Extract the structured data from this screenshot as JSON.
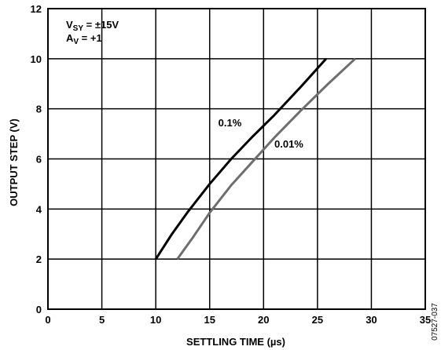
{
  "chart_data": {
    "type": "line",
    "xlabel": "SETTLING TIME (µs)",
    "ylabel": "OUTPUT STEP (V)",
    "xlim": [
      0,
      35
    ],
    "ylim": [
      0,
      12
    ],
    "xticks": [
      0,
      5,
      10,
      15,
      20,
      25,
      30,
      35
    ],
    "yticks": [
      0,
      2,
      4,
      6,
      8,
      10,
      12
    ],
    "grid": true,
    "annotation": {
      "line1": {
        "main": "V",
        "sub": "SY",
        "rest": " = ±15V"
      },
      "line2": {
        "main": "A",
        "sub": "V",
        "rest": " = +1"
      }
    },
    "series": [
      {
        "name": "0.1%",
        "color": "#000000",
        "x": [
          10.0,
          11.5,
          13.0,
          15.0,
          17.0,
          19.0,
          21.0,
          23.5,
          25.8
        ],
        "y": [
          2,
          3.0,
          3.9,
          5.0,
          6.0,
          6.9,
          7.75,
          8.9,
          10
        ]
      },
      {
        "name": "0.01%",
        "color": "#6e6e6e",
        "x": [
          12.0,
          13.5,
          15.0,
          17.0,
          19.0,
          21.0,
          23.5,
          26.0,
          28.5
        ],
        "y": [
          2,
          2.9,
          3.85,
          4.95,
          5.9,
          6.85,
          7.95,
          9.0,
          10
        ]
      }
    ],
    "figure_id": "07527-037"
  }
}
